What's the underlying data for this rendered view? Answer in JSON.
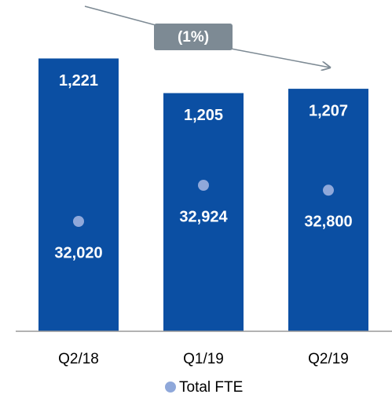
{
  "chart_data": {
    "type": "bar",
    "categories": [
      "Q2/18",
      "Q1/19",
      "Q2/19"
    ],
    "series": [
      {
        "color": "#0b4fa3",
        "values": [
          1221,
          1205,
          1207
        ],
        "value_labels": [
          "1,221",
          "1,205",
          "1,207"
        ]
      },
      {
        "name": "Total FTE",
        "color": "#8fa8da",
        "axis": "y2",
        "values": [
          32020,
          32924,
          32800
        ],
        "value_labels": [
          "32,020",
          "32,924",
          "32,800"
        ]
      }
    ],
    "ylim": [
      1095,
      1248
    ],
    "y2lim": [
      29270,
      37560
    ],
    "annotation": "(1%)",
    "legend": "bottom"
  }
}
